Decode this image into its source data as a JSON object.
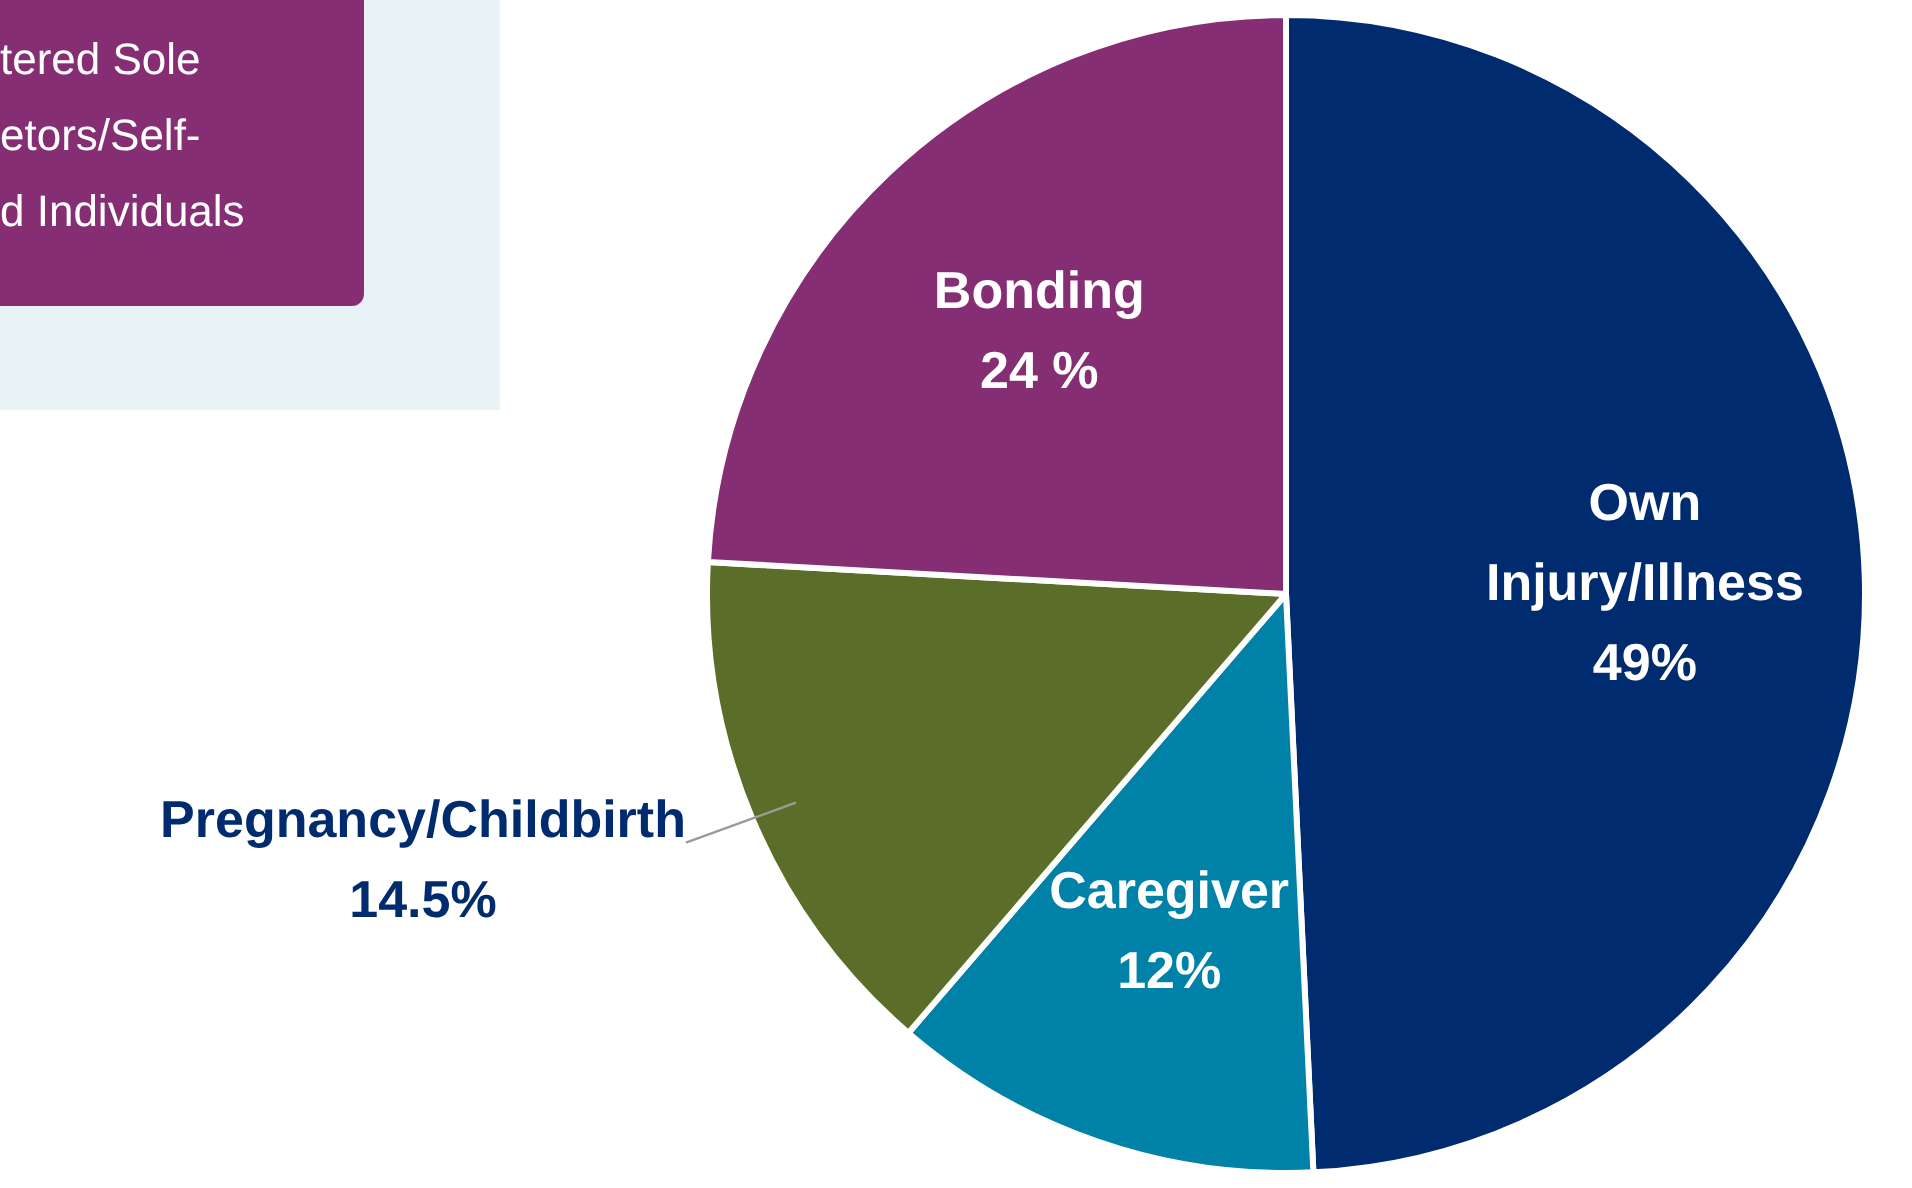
{
  "chart_data": {
    "type": "pie",
    "categories": [
      "Own Injury/Illness",
      "Caregiver",
      "Pregnancy/Childbirth",
      "Bonding"
    ],
    "values": [
      49,
      12,
      14.5,
      24
    ],
    "colors": [
      "#002b6f",
      "#0081a7",
      "#5b6e29",
      "#862e74"
    ],
    "value_labels": [
      "49%",
      "12%",
      "14.5%",
      "24 %"
    ],
    "annotations": [
      "tered Sole\netors/Self-\nd Individuals"
    ],
    "legend": false
  }
}
